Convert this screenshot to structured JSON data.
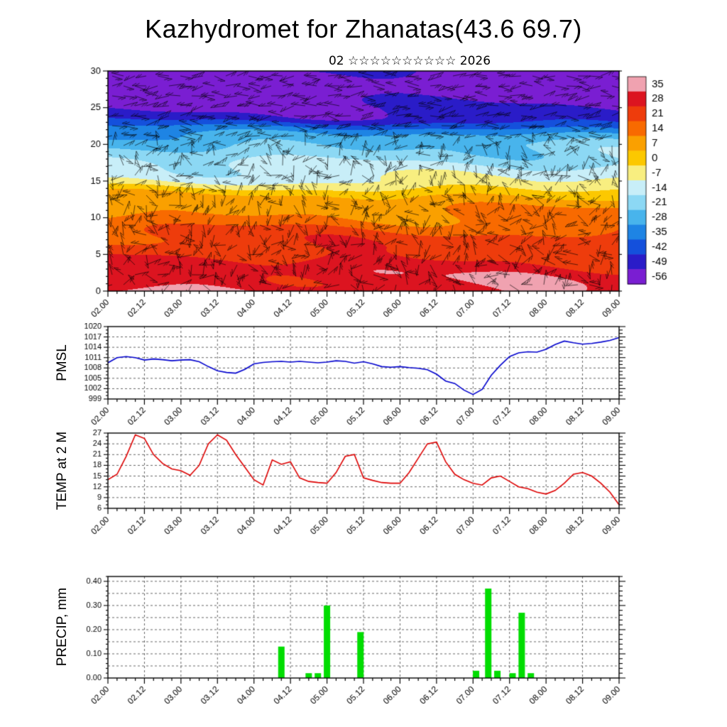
{
  "page": {
    "title": "Kazhydromet for Zhanatas(43.6 69.7)",
    "subtitle": "02 ☆☆☆☆☆☆☆☆☆☆ 2026"
  },
  "time_axis": {
    "tick_labels": [
      "02.00",
      "02.12",
      "03.00",
      "03.12",
      "04.00",
      "04.12",
      "05.00",
      "05.12",
      "06.00",
      "06.12",
      "07.00",
      "07.12",
      "08.00",
      "08.12",
      "09.00"
    ],
    "hours_span": 168,
    "major_step_h": 12,
    "minor_step_h": 3
  },
  "chart_data": [
    {
      "type": "heatmap",
      "name": "temperature-wind-cross-section",
      "overlay": "wind-barbs",
      "ylim": [
        0,
        30
      ],
      "yticks": [
        0,
        5,
        10,
        15,
        20,
        25,
        30
      ],
      "colorbar_labels": [
        "35",
        "28",
        "21",
        "14",
        "7",
        "0",
        "-7",
        "-14",
        "-21",
        "-28",
        "-35",
        "-42",
        "-49",
        "-56"
      ],
      "colorbar_colors": [
        "#f0a2b0",
        "#dc1420",
        "#ee3c0c",
        "#f86a00",
        "#faa000",
        "#fcc800",
        "#f8ee80",
        "#c8eef8",
        "#8cd8f4",
        "#48b4ec",
        "#1e84e4",
        "#1450dc",
        "#2a1cc8",
        "#7a1ed2"
      ],
      "profile_heights": [
        0,
        3,
        6,
        9,
        11,
        13,
        14,
        15,
        16,
        18,
        20,
        21.5,
        22.5,
        23.5,
        25,
        27,
        30
      ],
      "profile_temps": [
        27,
        24,
        19,
        12,
        6,
        0,
        -6,
        -13,
        -17,
        -22,
        -28,
        -36,
        -44,
        -52,
        -57,
        -60,
        -58
      ]
    },
    {
      "type": "line",
      "ylabel": "PMSL",
      "color": "#0000cd",
      "ylim": [
        999,
        1020
      ],
      "yticks": [
        999,
        1002,
        1005,
        1008,
        1011,
        1014,
        1017,
        1020
      ],
      "minor_step": 1,
      "x_step_h": 3,
      "values": [
        1009.5,
        1011.0,
        1011.3,
        1011.0,
        1010.3,
        1010.6,
        1010.4,
        1010.1,
        1010.3,
        1010.4,
        1009.8,
        1008.4,
        1007.2,
        1006.7,
        1006.5,
        1007.6,
        1009.2,
        1009.6,
        1009.8,
        1009.9,
        1009.7,
        1009.9,
        1009.7,
        1009.5,
        1009.7,
        1010.1,
        1009.9,
        1009.4,
        1009.8,
        1009.2,
        1008.4,
        1008.2,
        1008.4,
        1008.1,
        1007.9,
        1007.5,
        1006.2,
        1004.2,
        1003.5,
        1001.6,
        1000.3,
        1001.8,
        1005.9,
        1008.8,
        1011.3,
        1012.4,
        1012.7,
        1012.6,
        1013.4,
        1014.8,
        1015.8,
        1015.3,
        1014.9,
        1015.1,
        1015.5,
        1016.0,
        1016.8
      ]
    },
    {
      "type": "line",
      "ylabel": "TEMP at 2 M",
      "color": "#dd0000",
      "ylim": [
        6,
        27
      ],
      "yticks": [
        6,
        9,
        12,
        15,
        18,
        21,
        24,
        27
      ],
      "minor_step": 1,
      "x_step_h": 3,
      "values": [
        14,
        15.5,
        20.5,
        26.5,
        25.5,
        21,
        18.5,
        17,
        16.5,
        15.2,
        18,
        24,
        26.5,
        25,
        21,
        17.5,
        14,
        12.5,
        19.5,
        18.3,
        19,
        14.5,
        13.5,
        13.2,
        13,
        16,
        20.5,
        21,
        14.5,
        13.8,
        13.2,
        13,
        13,
        16,
        20,
        24,
        24.5,
        19,
        15.5,
        14,
        13,
        12.5,
        14.5,
        15,
        13.5,
        12,
        11.5,
        10.5,
        10,
        11,
        13,
        15.5,
        16,
        15,
        13,
        10.5,
        7
      ]
    },
    {
      "type": "bar",
      "ylabel": "PRECIP, mm",
      "color": "#00dd00",
      "ylim": [
        0,
        0.42
      ],
      "yticks": [
        0,
        0.1,
        0.2,
        0.3,
        0.4
      ],
      "ytick_labels": [
        "0.00",
        "0.10",
        "0.20",
        "0.30",
        "0.40"
      ],
      "grid_step": 0.05,
      "minor_step": 0.02,
      "bars": [
        {
          "t": 57,
          "v": 0.13
        },
        {
          "t": 66,
          "v": 0.02
        },
        {
          "t": 69,
          "v": 0.02
        },
        {
          "t": 72,
          "v": 0.3
        },
        {
          "t": 83,
          "v": 0.19
        },
        {
          "t": 121,
          "v": 0.03
        },
        {
          "t": 125,
          "v": 0.37
        },
        {
          "t": 128,
          "v": 0.03
        },
        {
          "t": 133,
          "v": 0.02
        },
        {
          "t": 136,
          "v": 0.27
        },
        {
          "t": 139,
          "v": 0.02
        }
      ]
    }
  ]
}
